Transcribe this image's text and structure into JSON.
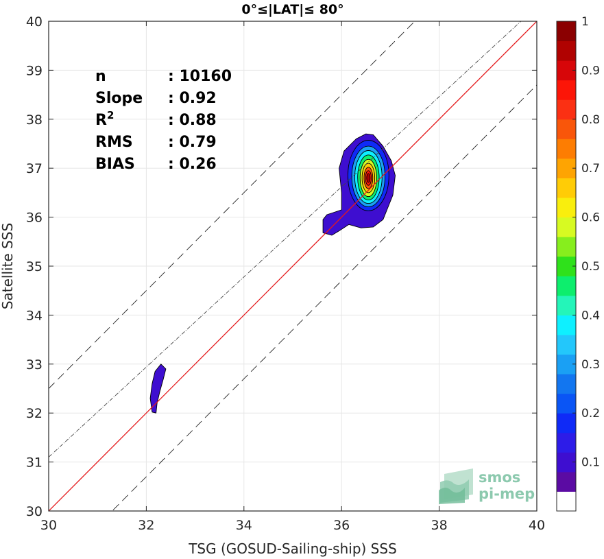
{
  "chart_data": {
    "type": "heatmap",
    "title": "0°≤|LAT|≤ 80°",
    "xlabel": "TSG (GOSUD-Sailing-ship) SSS",
    "ylabel": "Satellite SSS",
    "xlim": [
      30,
      40
    ],
    "ylim": [
      30,
      40
    ],
    "xticks": [
      30,
      32,
      34,
      36,
      38,
      40
    ],
    "yticks": [
      30,
      31,
      32,
      33,
      34,
      35,
      36,
      37,
      38,
      39,
      40
    ],
    "grid": true,
    "stats": [
      {
        "label": "n",
        "sep": ":",
        "value": "10160"
      },
      {
        "label": "Slope",
        "sep": ":",
        "value": "0.92"
      },
      {
        "label": "R",
        "sup": "2",
        "sep": ":",
        "value": "0.88"
      },
      {
        "label": "RMS",
        "sep": ":",
        "value": "0.79"
      },
      {
        "label": "BIAS",
        "sep": ":",
        "value": "0.26"
      }
    ],
    "reference_lines": [
      {
        "kind": "one_to_one",
        "intercept": 0,
        "slope": 1,
        "color": "#e41a1c",
        "style": "solid"
      },
      {
        "kind": "upper_bound",
        "intercept": 2.5,
        "slope": 1,
        "color": "#222222",
        "style": "dashed"
      },
      {
        "kind": "lower_bound",
        "intercept": -1.3,
        "slope": 1,
        "color": "#222222",
        "style": "dashed"
      },
      {
        "kind": "regression_fit",
        "intercept": 3.5,
        "slope": 0.92,
        "color": "#444444",
        "style": "dash-dot"
      }
    ],
    "density_clusters": [
      {
        "name": "main-cluster",
        "peak": [
          36.55,
          36.8
        ],
        "levels": [
          0.05,
          0.15,
          0.25,
          0.35,
          0.45,
          0.55,
          0.65,
          0.75,
          0.85,
          0.95
        ],
        "outer": [
          [
            35.62,
            35.68
          ],
          [
            35.62,
            35.95
          ],
          [
            35.7,
            36.05
          ],
          [
            35.85,
            36.1
          ],
          [
            36.0,
            36.15
          ],
          [
            36.0,
            36.5
          ],
          [
            35.95,
            37.0
          ],
          [
            36.05,
            37.35
          ],
          [
            36.3,
            37.6
          ],
          [
            36.5,
            37.7
          ],
          [
            36.65,
            37.68
          ],
          [
            36.85,
            37.45
          ],
          [
            37.02,
            37.15
          ],
          [
            37.1,
            36.85
          ],
          [
            37.05,
            36.45
          ],
          [
            36.85,
            35.95
          ],
          [
            36.65,
            35.8
          ],
          [
            36.4,
            35.78
          ],
          [
            36.15,
            35.85
          ],
          [
            35.95,
            35.72
          ],
          [
            35.8,
            35.63
          ]
        ],
        "inner": [
          {
            "cx": 36.55,
            "cy": 36.85,
            "rx": 0.42,
            "ry": 0.72
          },
          {
            "cx": 36.55,
            "cy": 36.83,
            "rx": 0.34,
            "ry": 0.62
          },
          {
            "cx": 36.55,
            "cy": 36.82,
            "rx": 0.28,
            "ry": 0.54
          },
          {
            "cx": 36.55,
            "cy": 36.81,
            "rx": 0.22,
            "ry": 0.46
          },
          {
            "cx": 36.55,
            "cy": 36.8,
            "rx": 0.17,
            "ry": 0.38
          },
          {
            "cx": 36.55,
            "cy": 36.8,
            "rx": 0.13,
            "ry": 0.3
          },
          {
            "cx": 36.55,
            "cy": 36.8,
            "rx": 0.09,
            "ry": 0.22
          },
          {
            "cx": 36.55,
            "cy": 36.8,
            "rx": 0.06,
            "ry": 0.15
          },
          {
            "cx": 36.55,
            "cy": 36.8,
            "rx": 0.035,
            "ry": 0.09
          }
        ]
      },
      {
        "name": "small-cluster",
        "peak": [
          32.2,
          32.5
        ],
        "levels": [
          0.05
        ],
        "outer": [
          [
            32.12,
            32.02
          ],
          [
            32.08,
            32.3
          ],
          [
            32.12,
            32.6
          ],
          [
            32.18,
            32.85
          ],
          [
            32.3,
            33.0
          ],
          [
            32.4,
            32.9
          ],
          [
            32.35,
            32.7
          ],
          [
            32.28,
            32.45
          ],
          [
            32.22,
            32.2
          ],
          [
            32.2,
            32.0
          ]
        ],
        "inner": []
      }
    ],
    "colorbar": {
      "min": 0,
      "max": 1,
      "ticks": [
        0.1,
        0.2,
        0.3,
        0.4,
        0.5,
        0.6,
        0.7,
        0.8,
        0.9,
        1
      ],
      "tick_labels": [
        "0.1",
        "0.2",
        "0.3",
        "0.4",
        "0.5",
        "0.6",
        "0.7",
        "0.8",
        "0.9",
        "1"
      ],
      "colors": [
        "#ffffff",
        "#5b0ba3",
        "#3e0ed0",
        "#2d1ce8",
        "#0f2af7",
        "#0a55f5",
        "#1276f0",
        "#1aa0f4",
        "#23c7fb",
        "#0ef0ff",
        "#24f5b9",
        "#0dee6d",
        "#2fe11b",
        "#87ee1d",
        "#d7fa22",
        "#f9ee0d",
        "#ffcc06",
        "#fea402",
        "#fd7d02",
        "#f9560a",
        "#fb3013",
        "#fc1507",
        "#d70609",
        "#b00201",
        "#8b0001"
      ]
    }
  },
  "logo": {
    "line1": "smos",
    "line2": "pi-mep"
  }
}
